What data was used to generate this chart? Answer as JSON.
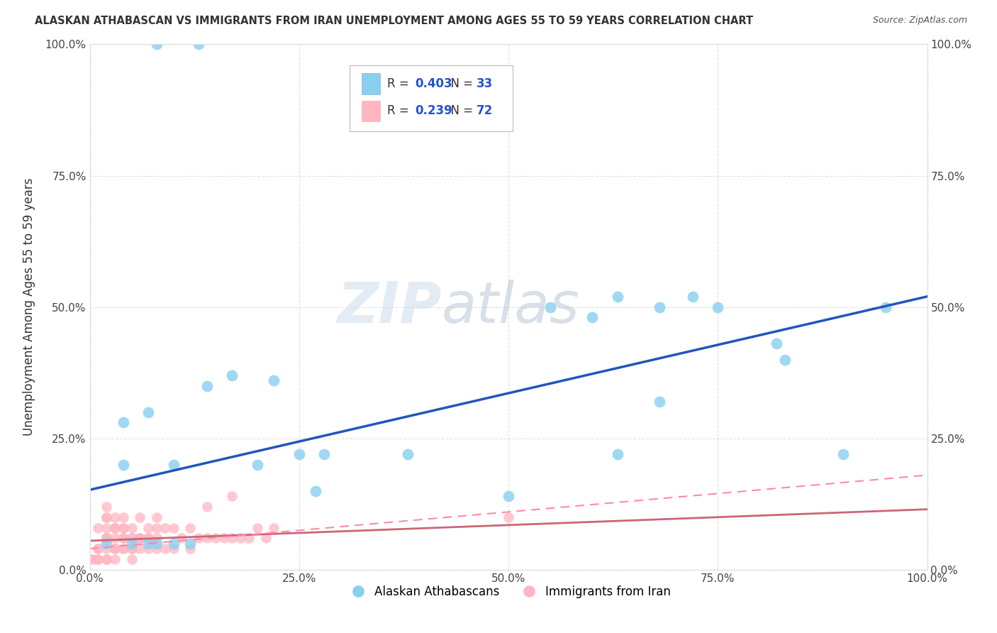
{
  "title": "ALASKAN ATHABASCAN VS IMMIGRANTS FROM IRAN UNEMPLOYMENT AMONG AGES 55 TO 59 YEARS CORRELATION CHART",
  "source": "Source: ZipAtlas.com",
  "ylabel": "Unemployment Among Ages 55 to 59 years",
  "xlim": [
    0,
    1
  ],
  "ylim": [
    0,
    1
  ],
  "xticks": [
    0.0,
    0.25,
    0.5,
    0.75,
    1.0
  ],
  "xtick_labels": [
    "0.0%",
    "25.0%",
    "50.0%",
    "75.0%",
    "100.0%"
  ],
  "yticks": [
    0.0,
    0.25,
    0.5,
    0.75,
    1.0
  ],
  "ytick_labels": [
    "0.0%",
    "25.0%",
    "50.0%",
    "75.0%",
    "100.0%"
  ],
  "blue_scatter_x": [
    0.08,
    0.13,
    0.04,
    0.07,
    0.1,
    0.14,
    0.17,
    0.2,
    0.27,
    0.5,
    0.55,
    0.63,
    0.68,
    0.72,
    0.82,
    0.95,
    0.38,
    0.22,
    0.25,
    0.28,
    0.75,
    0.83,
    0.9,
    0.6,
    0.63,
    0.68,
    0.02,
    0.05,
    0.08,
    0.1,
    0.12,
    0.04,
    0.07
  ],
  "blue_scatter_y": [
    1.0,
    1.0,
    0.28,
    0.3,
    0.2,
    0.35,
    0.37,
    0.2,
    0.15,
    0.14,
    0.5,
    0.52,
    0.5,
    0.52,
    0.43,
    0.5,
    0.22,
    0.36,
    0.22,
    0.22,
    0.5,
    0.4,
    0.22,
    0.48,
    0.22,
    0.32,
    0.05,
    0.05,
    0.05,
    0.05,
    0.05,
    0.2,
    0.05
  ],
  "pink_scatter_x": [
    0.0,
    0.005,
    0.01,
    0.01,
    0.02,
    0.02,
    0.02,
    0.02,
    0.03,
    0.03,
    0.03,
    0.03,
    0.04,
    0.04,
    0.04,
    0.05,
    0.05,
    0.05,
    0.05,
    0.06,
    0.06,
    0.06,
    0.07,
    0.07,
    0.07,
    0.08,
    0.08,
    0.08,
    0.09,
    0.09,
    0.1,
    0.1,
    0.11,
    0.12,
    0.12,
    0.13,
    0.14,
    0.15,
    0.16,
    0.17,
    0.18,
    0.19,
    0.2,
    0.21,
    0.22,
    0.14,
    0.17,
    0.5,
    0.02,
    0.02,
    0.03,
    0.04,
    0.01,
    0.02,
    0.03,
    0.01,
    0.02,
    0.01,
    0.02,
    0.03,
    0.04,
    0.05,
    0.06,
    0.07,
    0.08,
    0.03,
    0.04,
    0.05,
    0.06,
    0.04,
    0.02,
    0.03
  ],
  "pink_scatter_y": [
    0.02,
    0.02,
    0.02,
    0.04,
    0.02,
    0.04,
    0.06,
    0.08,
    0.02,
    0.04,
    0.06,
    0.1,
    0.04,
    0.06,
    0.08,
    0.02,
    0.04,
    0.06,
    0.08,
    0.04,
    0.06,
    0.1,
    0.04,
    0.06,
    0.08,
    0.04,
    0.06,
    0.1,
    0.04,
    0.08,
    0.04,
    0.08,
    0.06,
    0.04,
    0.08,
    0.06,
    0.06,
    0.06,
    0.06,
    0.06,
    0.06,
    0.06,
    0.08,
    0.06,
    0.08,
    0.12,
    0.14,
    0.1,
    0.1,
    0.12,
    0.08,
    0.1,
    0.08,
    0.06,
    0.04,
    0.02,
    0.02,
    0.04,
    0.06,
    0.04,
    0.06,
    0.04,
    0.06,
    0.06,
    0.08,
    0.08,
    0.08,
    0.06,
    0.06,
    0.04,
    0.1,
    0.08
  ],
  "blue_line_x": [
    0.0,
    1.0
  ],
  "blue_line_y": [
    0.152,
    0.52
  ],
  "pink_line_x": [
    0.0,
    1.0
  ],
  "pink_line_y": [
    0.055,
    0.115
  ],
  "pink_dashed_line_x": [
    0.0,
    1.0
  ],
  "pink_dashed_line_y": [
    0.04,
    0.18
  ],
  "blue_scatter_color": "#89CFF0",
  "pink_scatter_color": "#FFB6C1",
  "blue_line_color": "#2255BB",
  "pink_solid_line_color": "#CC6677",
  "pink_dashed_line_color": "#FF88AA",
  "R_blue": 0.403,
  "N_blue": 33,
  "R_pink": 0.239,
  "N_pink": 72,
  "legend_label_blue": "Alaskan Athabascans",
  "legend_label_pink": "Immigrants from Iran",
  "watermark_zip": "ZIP",
  "watermark_atlas": "atlas",
  "watermark_color_zip": "#ccddee",
  "watermark_color_atlas": "#aabbcc",
  "background_color": "#ffffff",
  "grid_color": "#cccccc",
  "title_color": "#333333",
  "source_color": "#555555",
  "stat_color": "#2255CC"
}
